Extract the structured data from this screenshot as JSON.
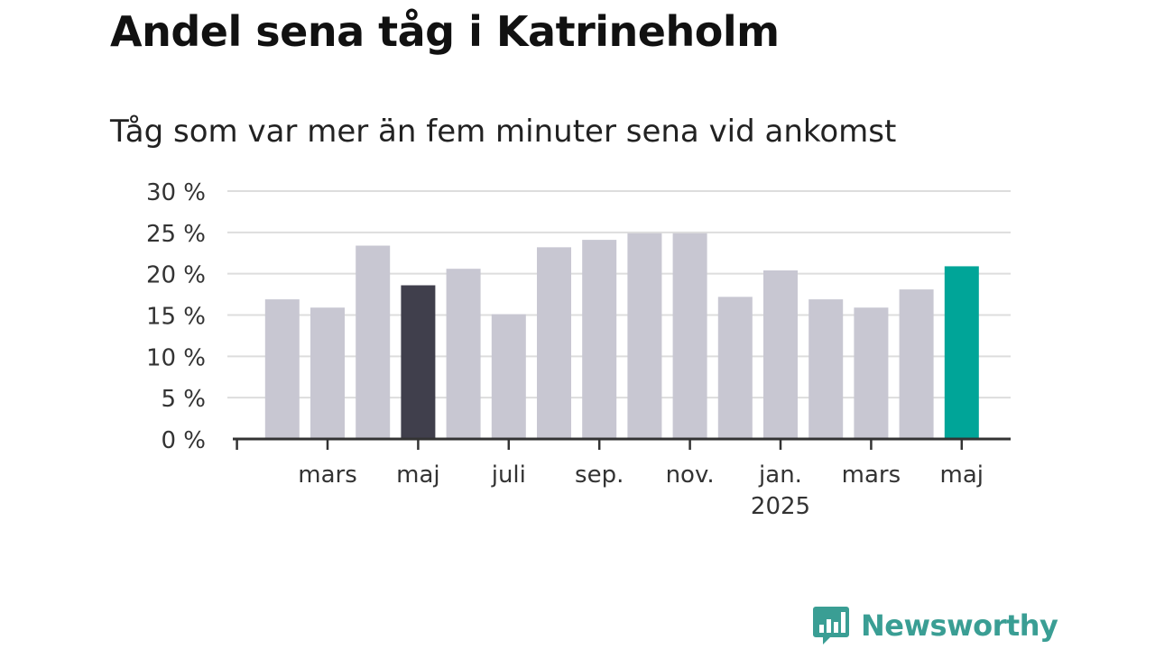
{
  "header": {
    "title": "Andel sena tåg i Katrineholm",
    "subtitle": "Tåg som var mer än fem minuter sena vid ankomst"
  },
  "brand": {
    "name": "Newsworthy",
    "logo_icon": "bar-chart-speech-bubble-icon"
  },
  "colors": {
    "bar_default": "#c8c7d2",
    "bar_previous_year": "#403f4c",
    "bar_latest": "#00a598",
    "gridline": "#dddddd",
    "axis": "#333333",
    "brand": "#3a9e94"
  },
  "chart_data": {
    "type": "bar",
    "title": "Andel sena tåg i Katrineholm",
    "subtitle": "Tåg som var mer än fem minuter sena vid ankomst",
    "xlabel": "",
    "ylabel": "",
    "unit": "%",
    "ylim": [
      0,
      30
    ],
    "yticks": [
      0,
      5,
      10,
      15,
      20,
      25,
      30
    ],
    "ytick_labels": [
      "0 %",
      "5 %",
      "10 %",
      "15 %",
      "20 %",
      "25 %",
      "30 %"
    ],
    "grid": true,
    "legend": "none",
    "categories": [
      "2024-01",
      "2024-02",
      "2024-03",
      "2024-04",
      "2024-05",
      "2024-06",
      "2024-07",
      "2024-08",
      "2024-09",
      "2024-10",
      "2024-11",
      "2024-12",
      "2025-01",
      "2025-02",
      "2025-03",
      "2025-04",
      "2025-05"
    ],
    "values": [
      null,
      16.9,
      15.9,
      23.4,
      18.6,
      20.6,
      15.1,
      23.2,
      24.1,
      24.9,
      24.9,
      17.2,
      20.4,
      16.9,
      15.9,
      18.1,
      20.9
    ],
    "highlight": {
      "2024-05": "previous_year",
      "2025-05": "latest"
    },
    "x_tick_labels": [
      {
        "category": "2024-03",
        "label": "mars"
      },
      {
        "category": "2024-05",
        "label": "maj"
      },
      {
        "category": "2024-07",
        "label": "juli"
      },
      {
        "category": "2024-09",
        "label": "sep."
      },
      {
        "category": "2024-11",
        "label": "nov."
      },
      {
        "category": "2025-01",
        "label": "jan.",
        "sublabel": "2025"
      },
      {
        "category": "2025-03",
        "label": "mars"
      },
      {
        "category": "2025-05",
        "label": "maj"
      }
    ]
  }
}
